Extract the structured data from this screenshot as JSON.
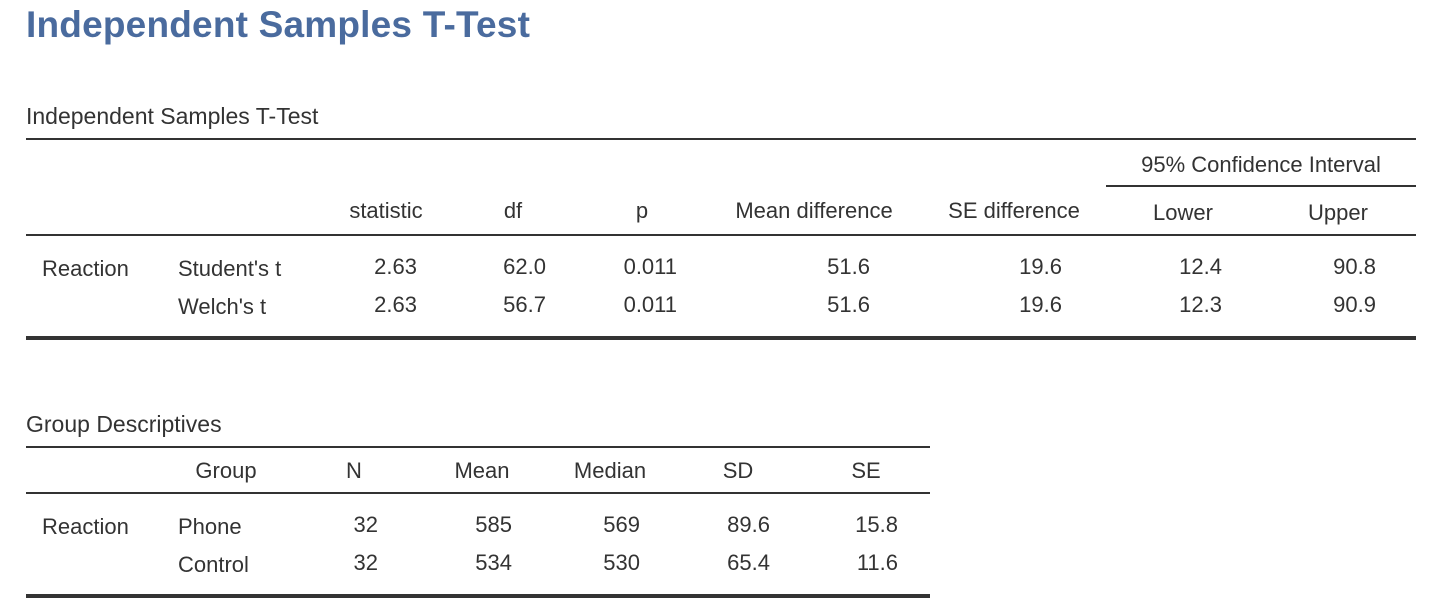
{
  "page_title": "Independent Samples T-Test",
  "ttest": {
    "caption": "Independent Samples T-Test",
    "ci_header": "95% Confidence Interval",
    "columns": {
      "statistic": "statistic",
      "df": "df",
      "p": "p",
      "mean_diff": "Mean difference",
      "se_diff": "SE difference",
      "lower": "Lower",
      "upper": "Upper"
    },
    "variable": "Reaction",
    "rows": [
      {
        "test": "Student's t",
        "statistic": "2.63",
        "df": "62.0",
        "p": "0.011",
        "mean_diff": "51.6",
        "se_diff": "19.6",
        "lower": "12.4",
        "upper": "90.8"
      },
      {
        "test": "Welch's t",
        "statistic": "2.63",
        "df": "56.7",
        "p": "0.011",
        "mean_diff": "51.6",
        "se_diff": "19.6",
        "lower": "12.3",
        "upper": "90.9"
      }
    ]
  },
  "descriptives": {
    "caption": "Group Descriptives",
    "columns": {
      "group": "Group",
      "n": "N",
      "mean": "Mean",
      "median": "Median",
      "sd": "SD",
      "se": "SE"
    },
    "variable": "Reaction",
    "rows": [
      {
        "group": "Phone",
        "n": "32",
        "mean": "585",
        "median": "569",
        "sd": "89.6",
        "se": "15.8"
      },
      {
        "group": "Control",
        "n": "32",
        "mean": "534",
        "median": "530",
        "sd": "65.4",
        "se": "11.6"
      }
    ]
  }
}
